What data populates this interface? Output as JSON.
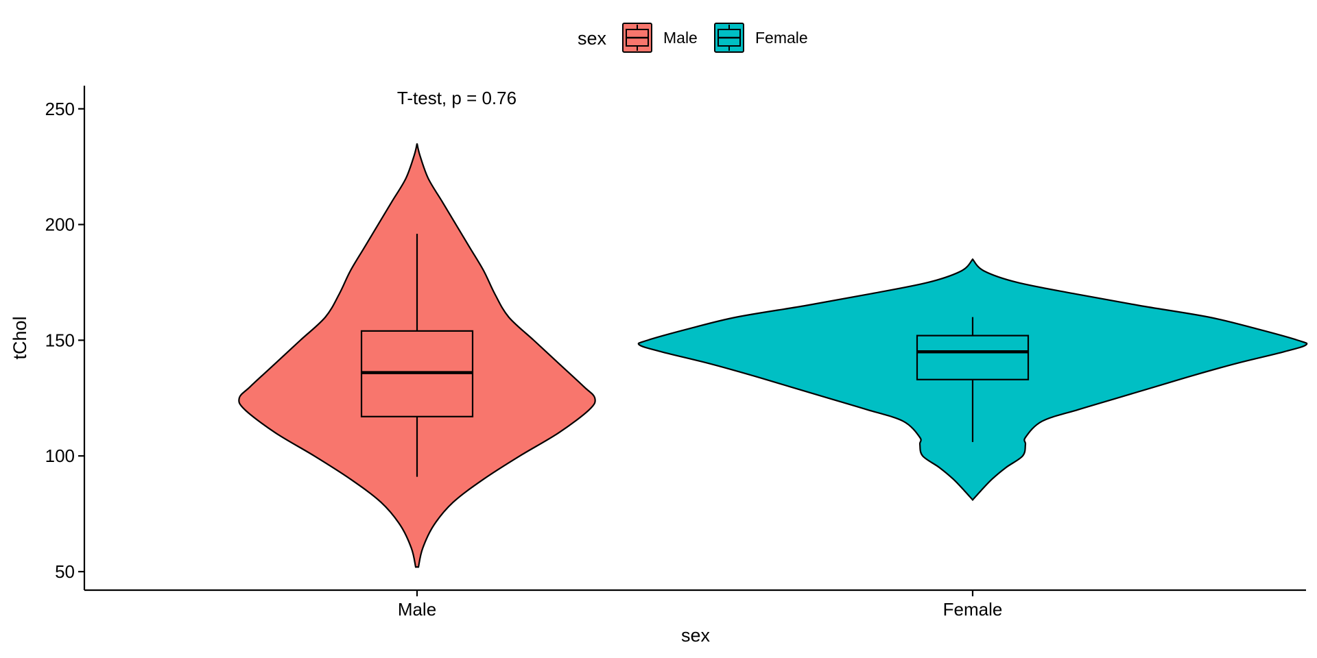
{
  "chart_data": {
    "type": "violin",
    "title": "",
    "xlabel": "sex",
    "ylabel": "tChol",
    "ylim": [
      42,
      260
    ],
    "yticks": [
      50,
      100,
      150,
      200,
      250
    ],
    "categories": [
      "Male",
      "Female"
    ],
    "legend": {
      "title": "sex",
      "position": "top",
      "entries": [
        {
          "label": "Male",
          "color": "#F8766D"
        },
        {
          "label": "Female",
          "color": "#00BFC4"
        }
      ]
    },
    "annotation": {
      "text": "T-test, p = 0.76",
      "x": "Male",
      "y": 252
    },
    "series": [
      {
        "name": "Male",
        "color": "#F8766D",
        "box": {
          "whisker_low": 91,
          "q1": 117,
          "median": 136,
          "q3": 154,
          "whisker_high": 196
        },
        "violin": {
          "y": [
            52,
            60,
            70,
            80,
            90,
            100,
            110,
            120,
            125,
            130,
            140,
            150,
            160,
            170,
            180,
            190,
            200,
            210,
            220,
            230,
            235
          ],
          "halfwidth": [
            0.005,
            0.02,
            0.06,
            0.13,
            0.24,
            0.37,
            0.51,
            0.62,
            0.64,
            0.6,
            0.51,
            0.42,
            0.33,
            0.28,
            0.24,
            0.19,
            0.14,
            0.09,
            0.04,
            0.01,
            0.0
          ]
        }
      },
      {
        "name": "Female",
        "color": "#00BFC4",
        "box": {
          "whisker_low": 106,
          "q1": 133,
          "median": 145,
          "q3": 152,
          "whisker_high": 160
        },
        "violin": {
          "y": [
            81,
            85,
            90,
            95,
            100,
            105,
            108,
            115,
            120,
            125,
            130,
            135,
            140,
            145,
            148,
            150,
            155,
            160,
            165,
            170,
            175,
            180,
            185
          ],
          "halfwidth": [
            0.0,
            0.03,
            0.07,
            0.12,
            0.18,
            0.19,
            0.19,
            0.25,
            0.38,
            0.52,
            0.66,
            0.8,
            0.95,
            1.12,
            1.2,
            1.17,
            1.02,
            0.85,
            0.6,
            0.37,
            0.16,
            0.04,
            0.0
          ]
        }
      }
    ]
  }
}
